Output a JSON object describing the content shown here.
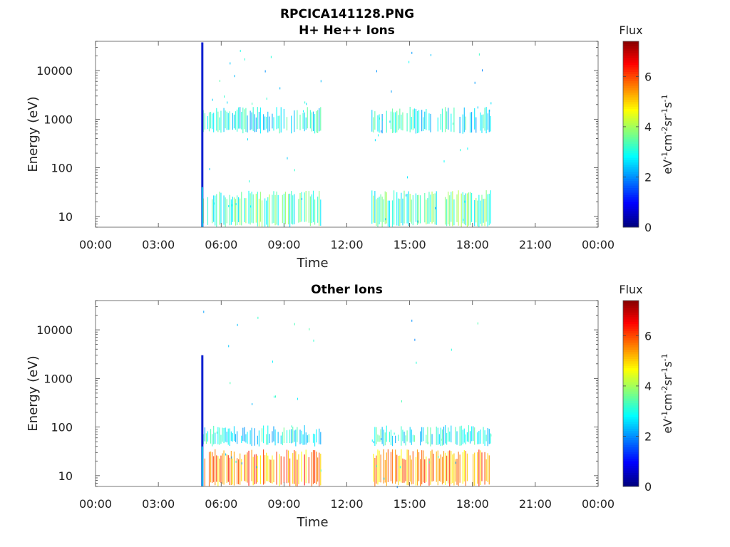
{
  "figure": {
    "title_line1": "RPCICA141128.PNG"
  },
  "chart_data": [
    {
      "type": "heatmap",
      "title": "H+ He++ Ions",
      "xlabel": "Time",
      "ylabel": "Energy (eV)",
      "x_ticks": [
        "00:00",
        "03:00",
        "06:00",
        "09:00",
        "12:00",
        "15:00",
        "18:00",
        "21:00",
        "00:00"
      ],
      "xlim_hours": [
        0,
        24
      ],
      "y_scale": "log",
      "ylim": [
        6,
        40000
      ],
      "y_ticks": [
        10,
        100,
        1000,
        10000
      ],
      "y_tick_labels": [
        "10",
        "100",
        "1000",
        "10000"
      ],
      "colorbar": {
        "title": "Flux",
        "label": "eV-1cm-2sr-1s-1",
        "range": [
          0,
          7.4
        ],
        "ticks": [
          0,
          2,
          4,
          6
        ],
        "colormap": "jet"
      },
      "features": {
        "spike_hours": 5.1,
        "spike_energy_range": [
          6,
          38000
        ],
        "data_intervals_hours": [
          [
            5.15,
            10.8
          ],
          [
            13.2,
            18.9
          ]
        ],
        "bands": [
          {
            "name": "upper",
            "energy_range": [
              500,
              1800
            ],
            "flux_range": [
              2.0,
              3.6
            ]
          },
          {
            "name": "lower",
            "energy_range": [
              6,
              35
            ],
            "flux_range": [
              2.5,
              4.2
            ]
          }
        ]
      }
    },
    {
      "type": "heatmap",
      "title": "Other Ions",
      "xlabel": "Time",
      "ylabel": "Energy (eV)",
      "x_ticks": [
        "00:00",
        "03:00",
        "06:00",
        "09:00",
        "12:00",
        "15:00",
        "18:00",
        "21:00",
        "00:00"
      ],
      "xlim_hours": [
        0,
        24
      ],
      "y_scale": "log",
      "ylim": [
        6,
        40000
      ],
      "y_ticks": [
        10,
        100,
        1000,
        10000
      ],
      "y_tick_labels": [
        "10",
        "100",
        "1000",
        "10000"
      ],
      "colorbar": {
        "title": "Flux",
        "label": "eV-1cm-2sr-1s-1",
        "range": [
          0,
          7.4
        ],
        "ticks": [
          0,
          2,
          4,
          6
        ],
        "colormap": "jet"
      },
      "features": {
        "spike_hours": 5.1,
        "spike_energy_range": [
          6,
          3000
        ],
        "data_intervals_hours": [
          [
            5.15,
            10.8
          ],
          [
            13.2,
            18.9
          ]
        ],
        "bands": [
          {
            "name": "upper",
            "energy_range": [
              40,
              110
            ],
            "flux_range": [
              2.0,
              3.6
            ]
          },
          {
            "name": "lower",
            "energy_range": [
              6,
              35
            ],
            "flux_range": [
              4.5,
              6.4
            ]
          }
        ]
      }
    }
  ]
}
